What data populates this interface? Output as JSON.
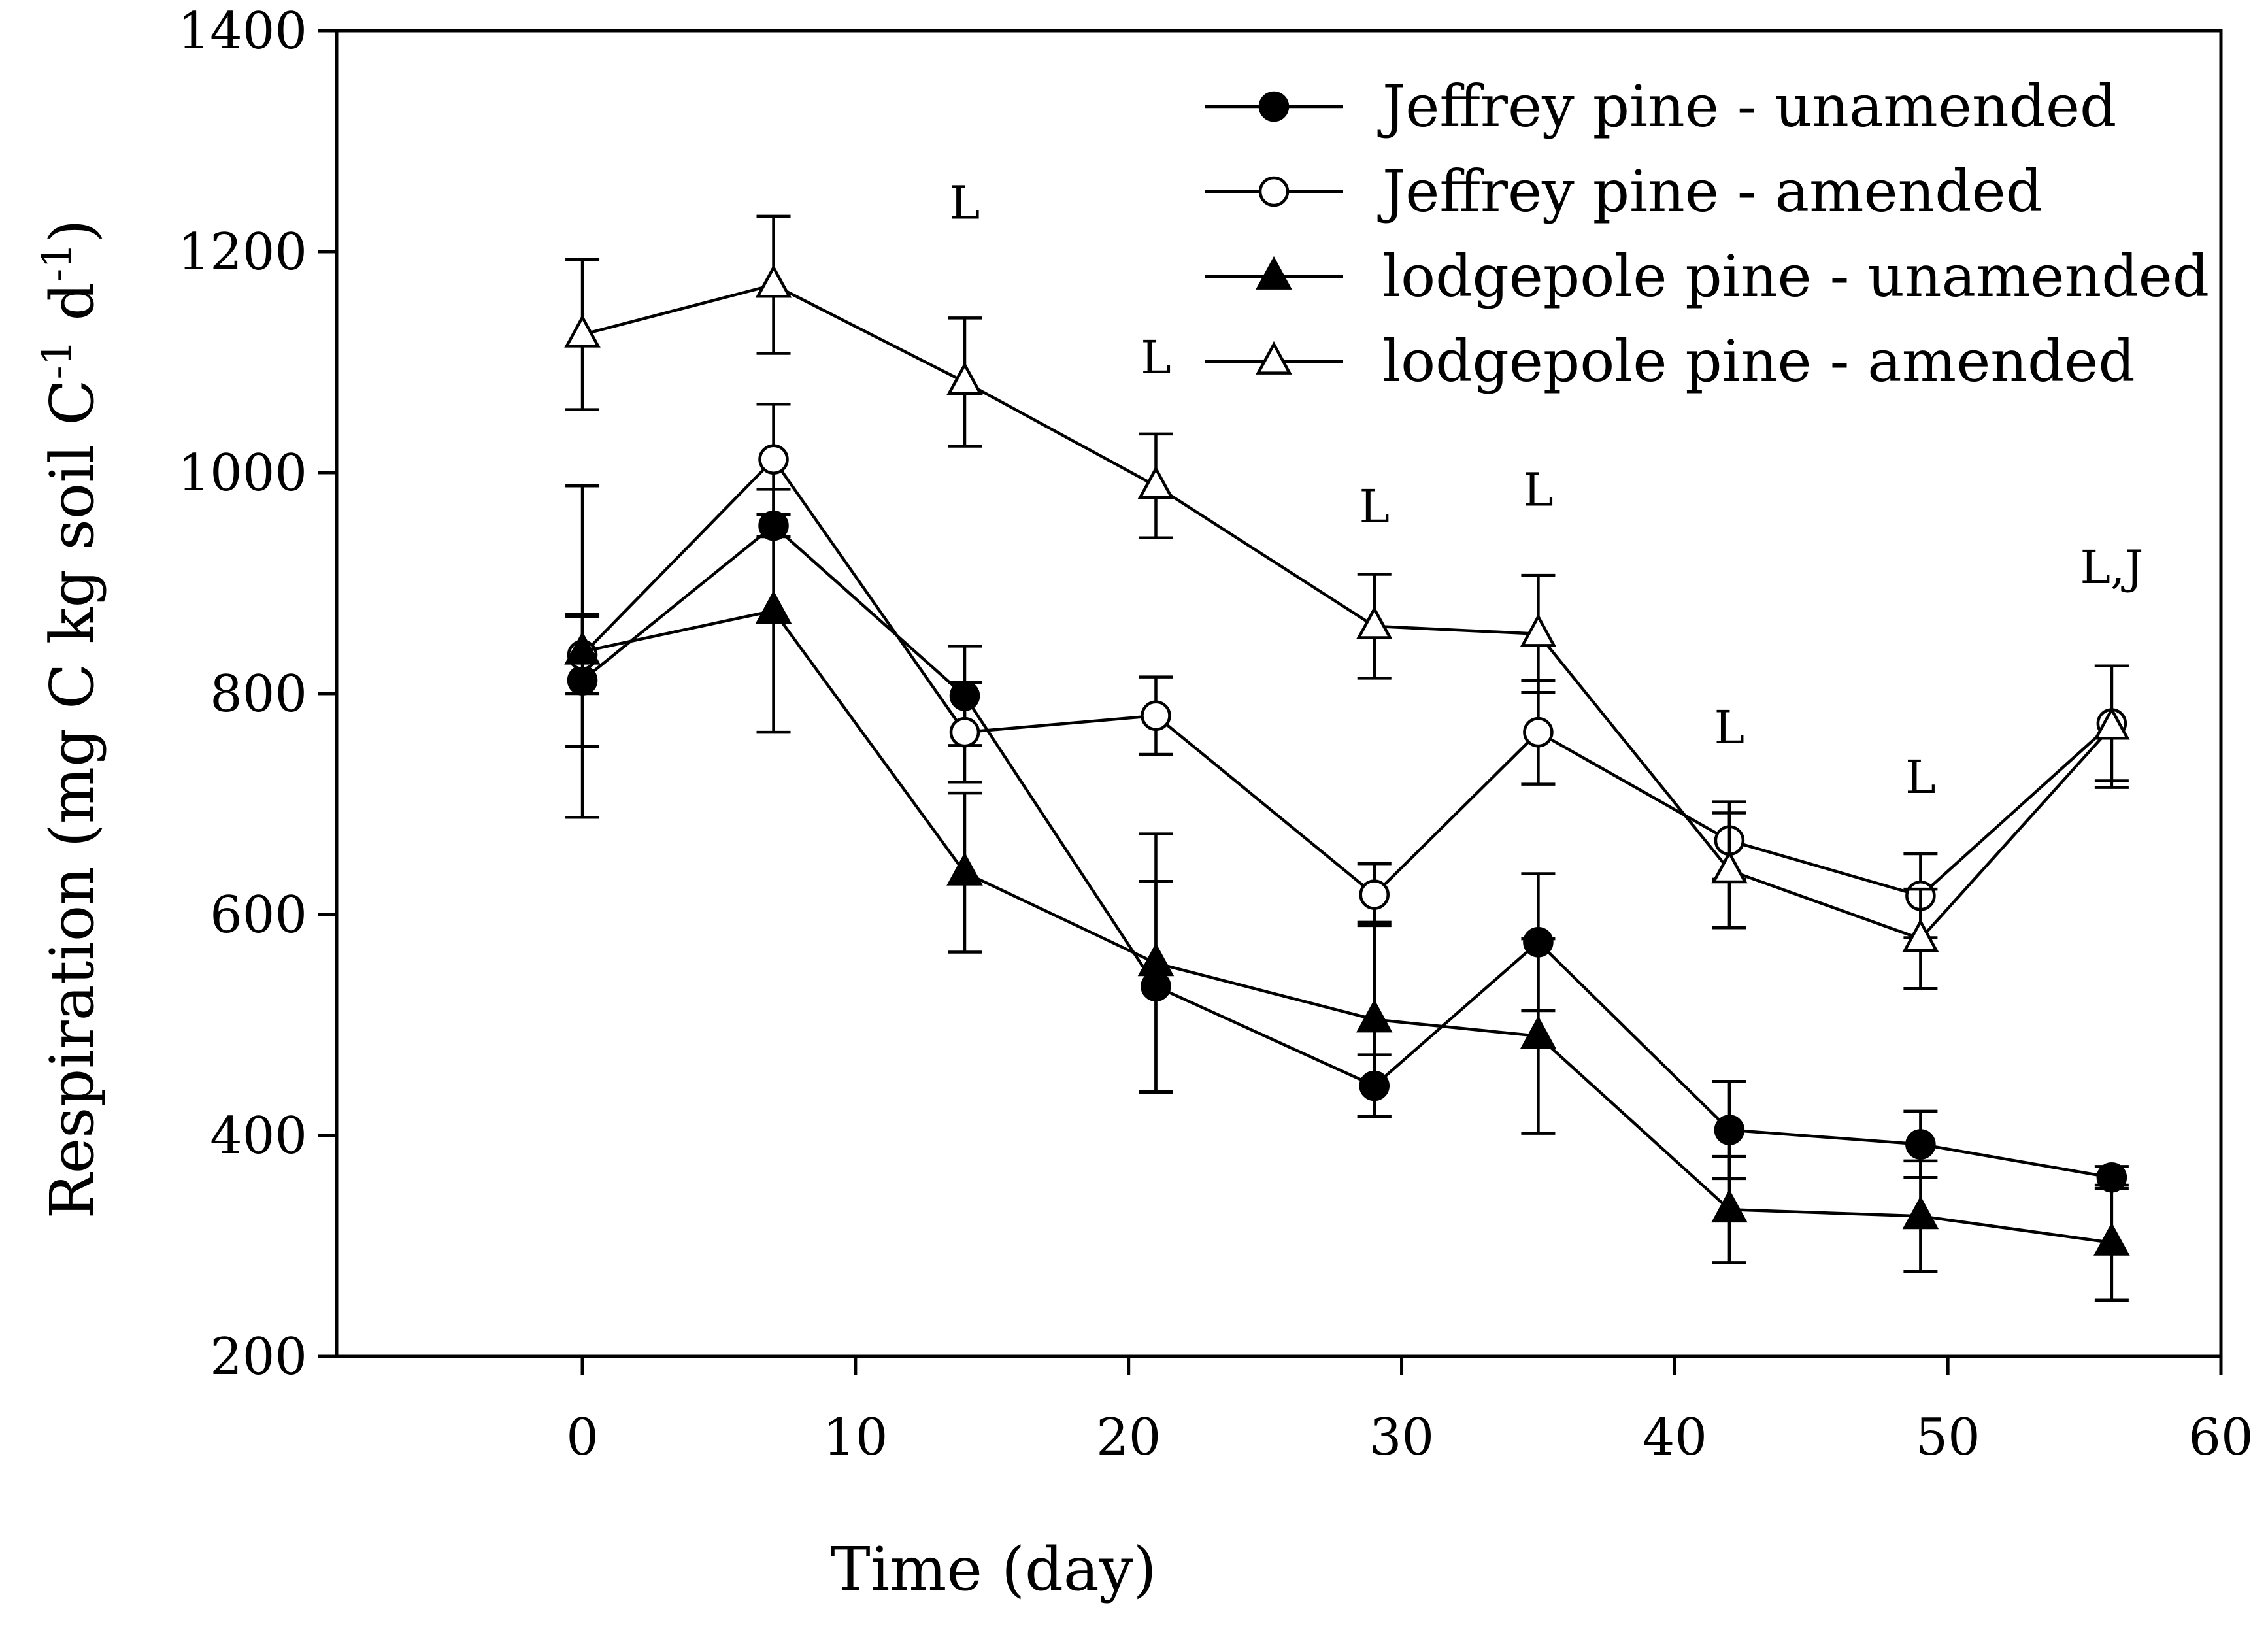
{
  "chart_data": {
    "type": "line",
    "xlabel": "Time (day)",
    "ylabel": {
      "main": "Respiration (mg C kg soil C",
      "sup1": "-1",
      "mid": " d",
      "sup2": "-1",
      "end": ")"
    },
    "xlim": [
      -9,
      60
    ],
    "ylim": [
      200,
      1400
    ],
    "xticks": [
      0,
      10,
      20,
      30,
      40,
      50,
      60
    ],
    "yticks": [
      200,
      400,
      600,
      800,
      1000,
      1200,
      1400
    ],
    "legend_position": "top-right",
    "series": [
      {
        "name": "Jeffrey pine - unamended",
        "marker": "circle",
        "filled": true,
        "x": [
          0,
          7,
          14,
          21,
          29,
          35,
          42,
          49,
          56
        ],
        "values": [
          812,
          952,
          798,
          535,
          445,
          575,
          405,
          392,
          362
        ],
        "errors": [
          60,
          10,
          45,
          95,
          28,
          62,
          44,
          30,
          10
        ]
      },
      {
        "name": "Jeffrey pine - amended",
        "marker": "circle",
        "filled": false,
        "x": [
          0,
          7,
          14,
          21,
          29,
          35,
          42,
          49,
          56
        ],
        "values": [
          835,
          1012,
          765,
          780,
          618,
          765,
          667,
          617,
          773
        ],
        "errors": [
          35,
          50,
          45,
          35,
          28,
          47,
          35,
          38,
          52
        ]
      },
      {
        "name": "lodgepole pine - unamended",
        "marker": "triangle",
        "filled": true,
        "x": [
          0,
          7,
          14,
          21,
          29,
          35,
          42,
          49,
          56
        ],
        "values": [
          838,
          875,
          638,
          556,
          505,
          490,
          333,
          327,
          303
        ],
        "errors": [
          150,
          110,
          72,
          117,
          88,
          88,
          48,
          50,
          52
        ]
      },
      {
        "name": "lodgepole pine - amended",
        "marker": "triangle",
        "filled": false,
        "x": [
          0,
          7,
          14,
          21,
          29,
          35,
          42,
          49,
          56
        ],
        "values": [
          1125,
          1170,
          1082,
          988,
          861,
          854,
          640,
          578,
          770
        ],
        "errors": [
          68,
          62,
          58,
          47,
          47,
          53,
          52,
          45,
          55
        ]
      }
    ],
    "annotations": [
      {
        "text": "L",
        "x": 14,
        "y": 1230
      },
      {
        "text": "L",
        "x": 21,
        "y": 1090
      },
      {
        "text": "L",
        "x": 29,
        "y": 955
      },
      {
        "text": "L",
        "x": 35,
        "y": 970
      },
      {
        "text": "L",
        "x": 42,
        "y": 755
      },
      {
        "text": "L",
        "x": 49,
        "y": 710
      },
      {
        "text": "L,J",
        "x": 56,
        "y": 900
      }
    ]
  }
}
